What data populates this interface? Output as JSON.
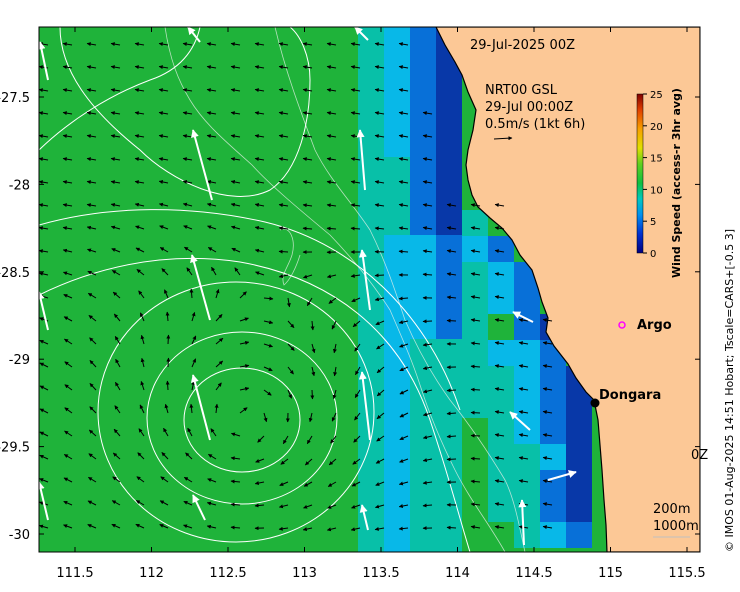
{
  "map": {
    "date_title": "29-Jul-2025 00Z",
    "station": {
      "line1": "NRT00 GSL",
      "line2": "29-Jul 00:00Z",
      "scale_label": "0.5m/s (1kt 6h)"
    },
    "x_ticks": [
      "111.5",
      "112",
      "112.5",
      "113",
      "113.5",
      "114",
      "114.5",
      "115",
      "115.5"
    ],
    "y_ticks": [
      "-27.5",
      "-28",
      "-28.5",
      "-29",
      "-29.5",
      "-30"
    ],
    "places": [
      {
        "name": "Argo"
      },
      {
        "name": "Dongara"
      }
    ],
    "contours": {
      "line1": "200m",
      "line2": "1000m"
    },
    "partial_label": "0Z",
    "colorbar": {
      "title": "Wind Speed (access-r 3hr avg)",
      "ticks": [
        "0",
        "5",
        "10",
        "15",
        "20",
        "25"
      ],
      "min": 0,
      "max": 25
    },
    "credit": "© IMOS 01-Aug-2025 14:51 Hobart; Tscale=CARS+[-0.5 3]",
    "colors": {
      "land": "#fcc896",
      "green": "#1fb33a",
      "teal": "#08c0a8",
      "cyan": "#08b8e8",
      "blue": "#0870d8",
      "navy": "#0838a8",
      "argo_marker": "#ff00ff"
    }
  }
}
